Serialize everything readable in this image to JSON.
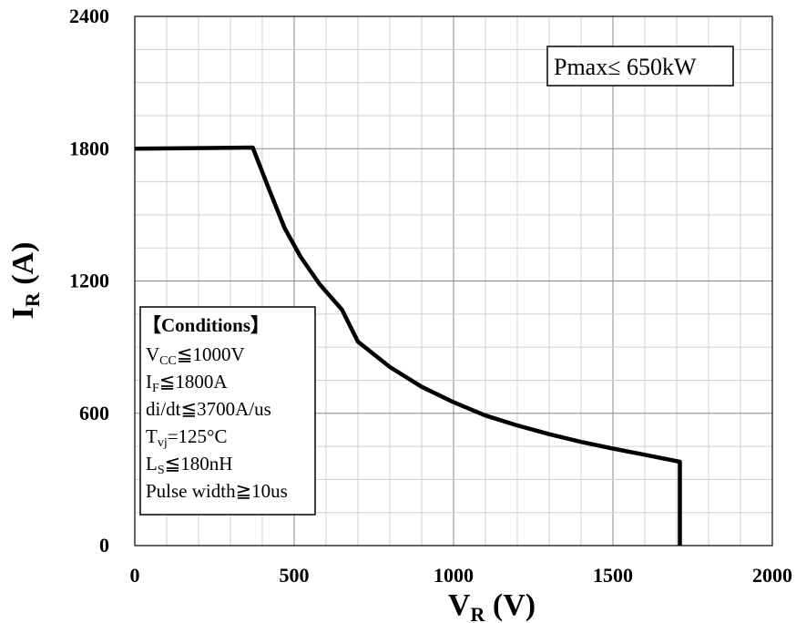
{
  "chart_data": {
    "type": "line",
    "x": [
      0,
      370,
      420,
      470,
      520,
      580,
      650,
      700,
      800,
      900,
      1000,
      1100,
      1200,
      1300,
      1400,
      1500,
      1600,
      1710,
      1710
    ],
    "series": [
      {
        "values": [
          1800,
          1805,
          1620,
          1440,
          1310,
          1185,
          1070,
          925,
          810,
          720,
          650,
          590,
          545,
          505,
          470,
          440,
          412,
          380,
          0
        ]
      }
    ],
    "xlim": [
      0,
      2000
    ],
    "ylim": [
      0,
      2400
    ],
    "xticks": [
      "0",
      "500",
      "1000",
      "1500",
      "2000"
    ],
    "yticks": [
      "0",
      "600",
      "1200",
      "1800",
      "2400"
    ],
    "xlabel": {
      "main": "V",
      "sub": "R",
      "unit": " (V)"
    },
    "ylabel": {
      "main": "I",
      "sub": "R",
      "unit": " (A)"
    },
    "grid": true,
    "annotation": "Pmax≤ 650kW",
    "conditions": {
      "title": "【Conditions】",
      "lines": [
        {
          "main": "V",
          "sub": "CC",
          "rest": "≦1000V"
        },
        {
          "main": "I",
          "sub": "F",
          "rest": "≦1800A"
        },
        {
          "main": "di/dt≦3700A/us",
          "sub": "",
          "rest": ""
        },
        {
          "main": "T",
          "sub": "vj",
          "rest": "=125°C"
        },
        {
          "main": "L",
          "sub": "S",
          "rest": "≦180nH"
        },
        {
          "main": "Pulse width≧10us",
          "sub": "",
          "rest": ""
        }
      ]
    },
    "colors": {
      "line": "#000000",
      "grid_major": "#888888",
      "grid_minor": "#d0d0d0"
    }
  }
}
